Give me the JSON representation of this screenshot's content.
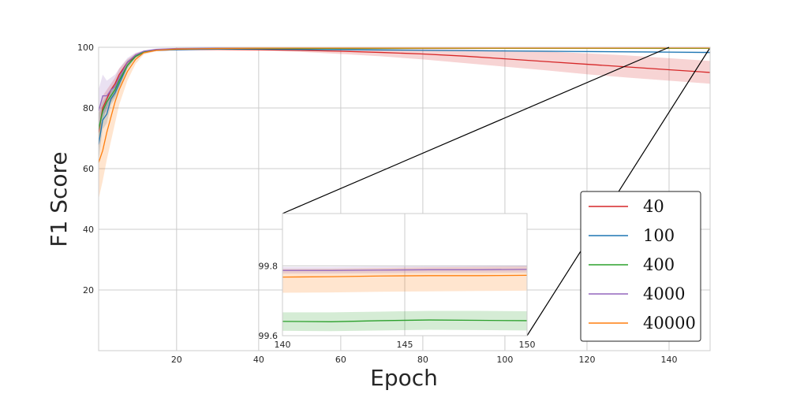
{
  "chart_data": {
    "type": "line",
    "title": "",
    "xlabel": "Epoch",
    "ylabel": "F1 Score",
    "xlim": [
      1,
      150
    ],
    "ylim": [
      0,
      100
    ],
    "x_ticks": [
      20,
      40,
      60,
      80,
      100,
      120,
      140
    ],
    "y_ticks": [
      20,
      40,
      60,
      80,
      100
    ],
    "grid": true,
    "legend_position": "lower-right",
    "series": [
      {
        "name": "40",
        "color": "#d62728",
        "x": [
          1,
          2,
          3,
          4,
          5,
          6,
          8,
          10,
          12,
          15,
          20,
          30,
          40,
          50,
          60,
          70,
          80,
          90,
          100,
          110,
          120,
          130,
          140,
          150
        ],
        "y": [
          72,
          80,
          83,
          86,
          88,
          91,
          95,
          97,
          98.4,
          99,
          99.2,
          99.3,
          99.2,
          99,
          98.7,
          98.3,
          97.8,
          97.1,
          96.2,
          95.3,
          94.4,
          93.5,
          92.6,
          91.7
        ],
        "lower": [
          66,
          76,
          80,
          84,
          86,
          89,
          94,
          96.5,
          98,
          98.7,
          99,
          99.1,
          98.9,
          98.5,
          97.8,
          97,
          96,
          94.8,
          93.6,
          92.4,
          91.1,
          90,
          89,
          88
        ],
        "upper": [
          78,
          84,
          86,
          88,
          90,
          93,
          96,
          98,
          98.8,
          99.3,
          99.4,
          99.5,
          99.5,
          99.5,
          99.5,
          99.4,
          99.4,
          99.3,
          99,
          98.6,
          98,
          97.3,
          96.4,
          95.5
        ]
      },
      {
        "name": "100",
        "color": "#1f77b4",
        "x": [
          1,
          2,
          3,
          4,
          5,
          6,
          8,
          10,
          12,
          15,
          20,
          30,
          40,
          50,
          60,
          70,
          80,
          90,
          100,
          110,
          120,
          130,
          140,
          150
        ],
        "y": [
          68,
          76,
          78,
          83,
          85,
          88,
          94,
          97,
          98.4,
          99,
          99.2,
          99.4,
          99.4,
          99.3,
          99.2,
          99.1,
          99,
          98.9,
          98.8,
          98.7,
          98.6,
          98.5,
          98.4,
          98.3
        ],
        "lower": [
          63,
          73,
          75,
          81,
          83,
          86,
          93,
          96.5,
          98,
          98.8,
          99,
          99.2,
          99.2,
          99.1,
          99,
          98.9,
          98.8,
          98.7,
          98.6,
          98.4,
          98.3,
          98.2,
          98.1,
          98
        ],
        "upper": [
          74,
          80,
          82,
          86,
          88,
          91,
          95.5,
          97.6,
          98.7,
          99.2,
          99.4,
          99.6,
          99.6,
          99.5,
          99.4,
          99.3,
          99.2,
          99.1,
          99,
          98.9,
          98.8,
          98.7,
          98.6,
          98.6
        ]
      },
      {
        "name": "400",
        "color": "#2ca02c",
        "x": [
          1,
          2,
          3,
          4,
          5,
          6,
          8,
          10,
          12,
          15,
          20,
          30,
          40,
          50,
          60,
          80,
          100,
          120,
          140,
          150
        ],
        "y": [
          73,
          79,
          82,
          84,
          86,
          89,
          94,
          97,
          98.5,
          99.1,
          99.4,
          99.6,
          99.6,
          99.6,
          99.6,
          99.64,
          99.64,
          99.64,
          99.64,
          99.64
        ],
        "lower": [
          68,
          76,
          80,
          82,
          84,
          87,
          93,
          96.5,
          98.2,
          98.9,
          99.3,
          99.55,
          99.6,
          99.6,
          99.61,
          99.61,
          99.61,
          99.61,
          99.61,
          99.61
        ],
        "upper": [
          78,
          82,
          84,
          86,
          88,
          91,
          95.5,
          97.6,
          98.8,
          99.3,
          99.5,
          99.65,
          99.67,
          99.67,
          99.67,
          99.67,
          99.67,
          99.67,
          99.67,
          99.67
        ]
      },
      {
        "name": "4000",
        "color": "#9467bd",
        "x": [
          1,
          2,
          3,
          4,
          5,
          6,
          8,
          10,
          12,
          15,
          20,
          30,
          40,
          50,
          60,
          80,
          100,
          120,
          140,
          150
        ],
        "y": [
          79,
          84,
          84,
          86,
          87,
          90,
          95,
          97.5,
          98.7,
          99.3,
          99.6,
          99.7,
          99.75,
          99.78,
          99.78,
          99.78,
          99.78,
          99.78,
          99.78,
          99.78
        ],
        "lower": [
          72,
          78,
          79,
          82,
          84,
          87,
          93.5,
          96.8,
          98.4,
          99.1,
          99.5,
          99.68,
          99.72,
          99.77,
          99.77,
          99.77,
          99.77,
          99.77,
          99.77,
          99.77
        ],
        "upper": [
          86,
          91,
          89,
          90,
          91,
          93,
          96.5,
          98.2,
          99,
          99.5,
          99.7,
          99.78,
          99.79,
          99.8,
          99.8,
          99.8,
          99.8,
          99.8,
          99.8,
          99.8
        ]
      },
      {
        "name": "40000",
        "color": "#ff7f0e",
        "x": [
          1,
          2,
          3,
          4,
          5,
          6,
          8,
          10,
          12,
          15,
          20,
          30,
          40,
          50,
          60,
          80,
          100,
          120,
          140,
          150
        ],
        "y": [
          62,
          66,
          72,
          77,
          82,
          86,
          92,
          96,
          98.2,
          99,
          99.4,
          99.6,
          99.7,
          99.75,
          99.76,
          99.76,
          99.76,
          99.76,
          99.77,
          99.77
        ],
        "lower": [
          50,
          56,
          63,
          69,
          75,
          81,
          89,
          94.5,
          97.6,
          98.7,
          99.2,
          99.5,
          99.65,
          99.72,
          99.73,
          99.73,
          99.73,
          99.73,
          99.73,
          99.73
        ],
        "upper": [
          73,
          76,
          80,
          84,
          87,
          90,
          95,
          97.5,
          98.8,
          99.3,
          99.6,
          99.7,
          99.76,
          99.78,
          99.79,
          99.79,
          99.79,
          99.79,
          99.8,
          99.8
        ]
      }
    ],
    "inset": {
      "xlim": [
        140,
        150
      ],
      "ylim": [
        99.6,
        99.95
      ],
      "x_ticks": [
        140,
        145,
        150
      ],
      "y_ticks": [
        99.6,
        99.8
      ],
      "series": [
        {
          "name": "400",
          "color": "#2ca02c",
          "x": [
            140,
            142,
            144,
            146,
            148,
            150
          ],
          "y": [
            99.641,
            99.64,
            99.643,
            99.645,
            99.644,
            99.643
          ],
          "lower": [
            99.614,
            99.613,
            99.615,
            99.617,
            99.616,
            99.615
          ],
          "upper": [
            99.667,
            99.667,
            99.669,
            99.671,
            99.671,
            99.67
          ]
        },
        {
          "name": "40000",
          "color": "#ff7f0e",
          "x": [
            140,
            142,
            144,
            146,
            148,
            150
          ],
          "y": [
            99.768,
            99.769,
            99.771,
            99.772,
            99.772,
            99.773
          ],
          "lower": [
            99.723,
            99.724,
            99.726,
            99.727,
            99.728,
            99.729
          ],
          "upper": [
            99.791,
            99.792,
            99.794,
            99.796,
            99.797,
            99.798
          ]
        },
        {
          "name": "4000",
          "color": "#9467bd",
          "x": [
            140,
            142,
            144,
            146,
            148,
            150
          ],
          "y": [
            99.787,
            99.787,
            99.788,
            99.789,
            99.789,
            99.79
          ],
          "lower": [
            99.778,
            99.778,
            99.779,
            99.78,
            99.78,
            99.781
          ],
          "upper": [
            99.797,
            99.797,
            99.798,
            99.799,
            99.8,
            99.801
          ]
        }
      ]
    }
  }
}
